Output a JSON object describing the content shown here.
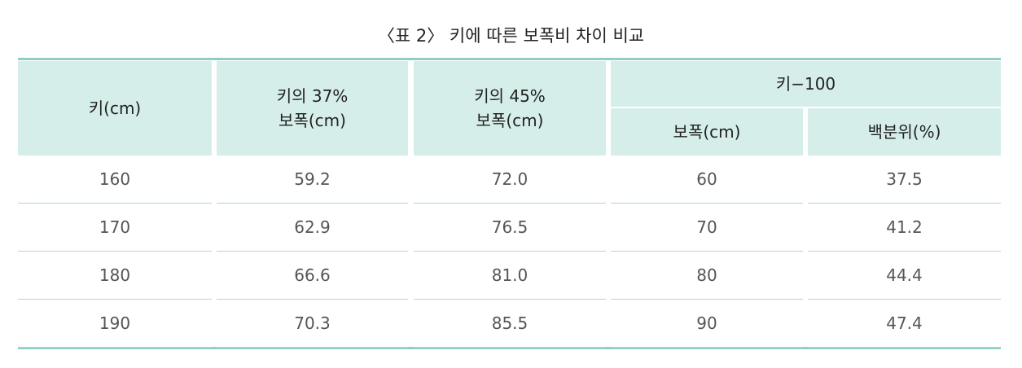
{
  "title": "〈표 2〉 키에 따른 보폭비 차이 비교",
  "table": {
    "headers": [
      [
        "키(cm)"
      ],
      [
        "키의 37%",
        "보폭(cm)"
      ],
      [
        "키의 45%",
        "보폭(cm)"
      ]
    ],
    "group": "키−100",
    "subheaders": [
      "보폭(cm)",
      "백분위(%)"
    ],
    "rows": [
      [
        "160",
        "59.2",
        "72.0",
        "60",
        "37.5"
      ],
      [
        "170",
        "62.9",
        "76.5",
        "70",
        "41.2"
      ],
      [
        "180",
        "66.6",
        "81.0",
        "80",
        "44.4"
      ],
      [
        "190",
        "70.3",
        "85.5",
        "90",
        "47.4"
      ]
    ]
  }
}
